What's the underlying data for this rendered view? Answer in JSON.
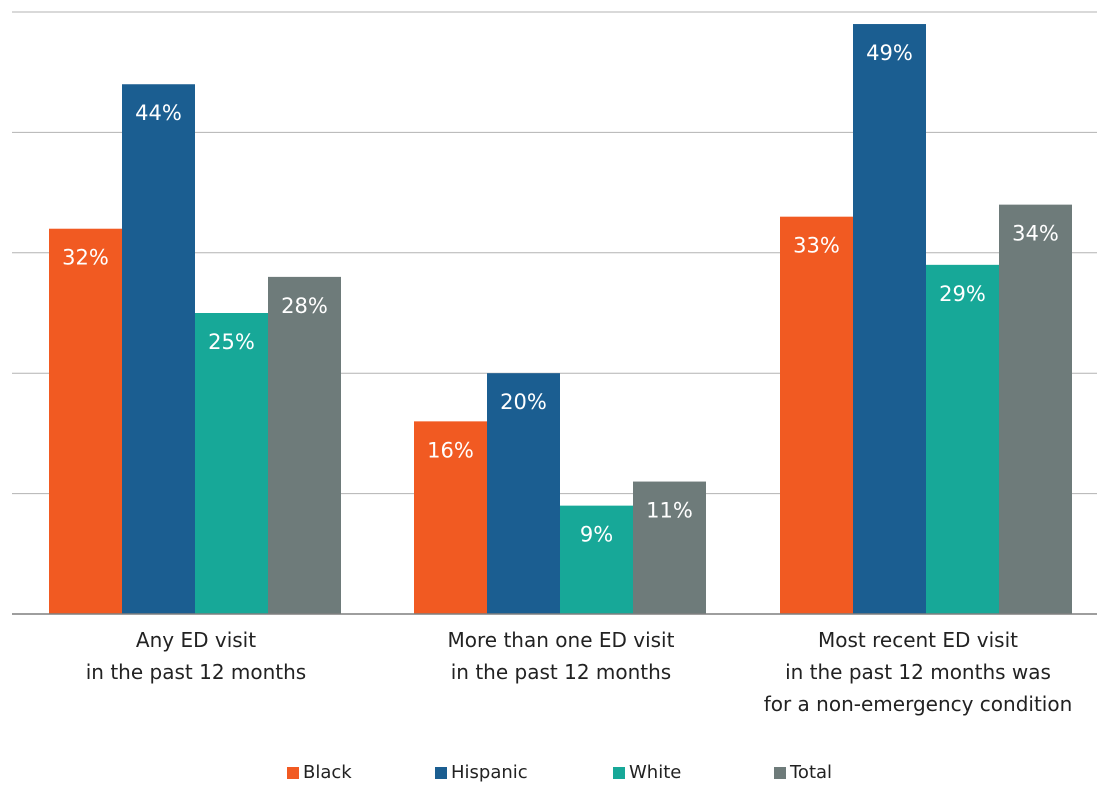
{
  "chart_data": {
    "type": "bar",
    "categories": [
      [
        "Any ED visit",
        "in the past 12 months"
      ],
      [
        "More than one ED visit",
        "in the past 12 months"
      ],
      [
        "Most recent ED visit",
        "in the past 12 months was",
        "for a non-emergency condition"
      ]
    ],
    "series": [
      {
        "name": "Black",
        "color": "#F15A22",
        "values": [
          32,
          16,
          33
        ],
        "labels": [
          "32%",
          "16%",
          "33%"
        ]
      },
      {
        "name": "Hispanic",
        "color": "#1B5E91",
        "values": [
          44,
          20,
          49
        ],
        "labels": [
          "44%",
          "20%",
          "49%"
        ]
      },
      {
        "name": "White",
        "color": "#17A898",
        "values": [
          25,
          9,
          29
        ],
        "labels": [
          "25%",
          "9%",
          "29%"
        ]
      },
      {
        "name": "Total",
        "color": "#6E7B7A",
        "values": [
          28,
          11,
          34
        ],
        "labels": [
          "28%",
          "11%",
          "34%"
        ]
      }
    ],
    "ylim": [
      0,
      50
    ],
    "grid": true,
    "legend_position": "bottom",
    "title": "",
    "xlabel": "",
    "ylabel": ""
  }
}
